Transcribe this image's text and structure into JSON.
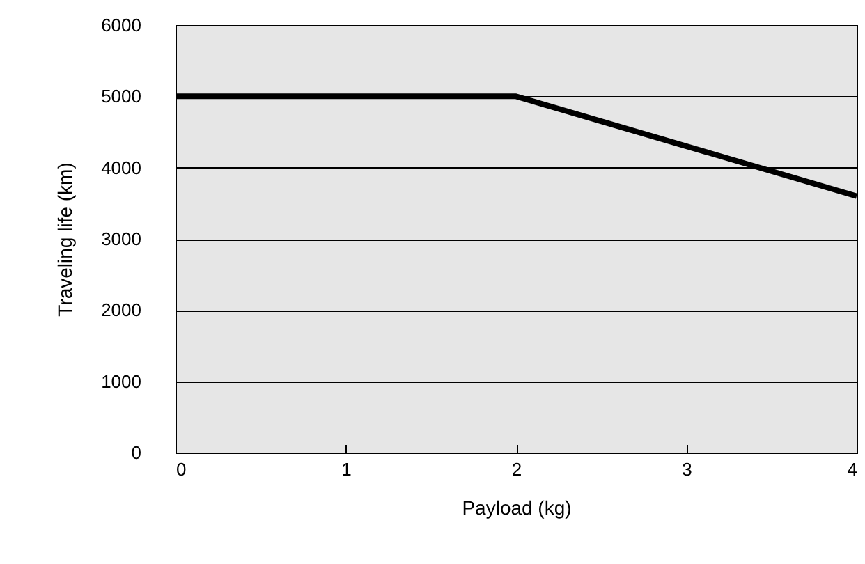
{
  "chart_data": {
    "type": "line",
    "xlabel": "Payload (kg)",
    "ylabel": "Traveling life (km)",
    "x": [
      0,
      2,
      4
    ],
    "series": [
      {
        "color": "#000000",
        "values": [
          5000,
          5000,
          3600
        ]
      }
    ],
    "xlim": [
      0,
      4
    ],
    "xticks": [
      0,
      1,
      2,
      3,
      4
    ],
    "ylim": [
      0,
      6000
    ],
    "yticks": [
      0,
      1000,
      2000,
      3000,
      4000,
      5000,
      6000
    ],
    "grid": "y",
    "line_style": "solid"
  }
}
